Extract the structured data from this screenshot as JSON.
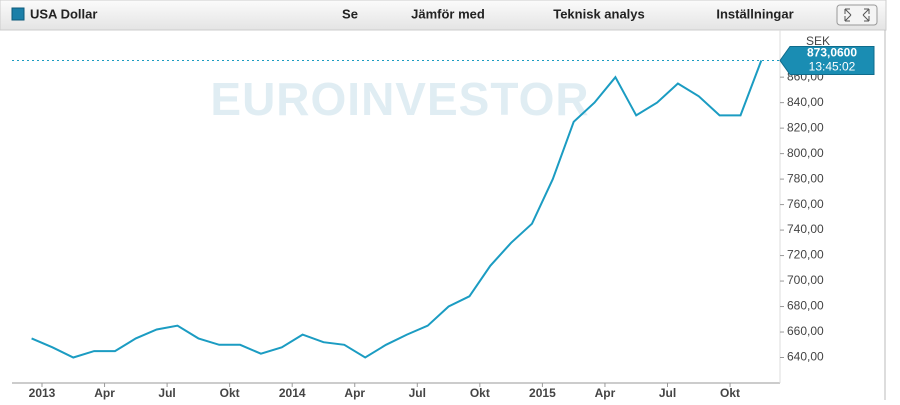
{
  "chart_data": {
    "type": "line",
    "title": "USA Dollar",
    "menu": [
      "Se",
      "Jämför med",
      "Teknisk analys",
      "Inställningar"
    ],
    "watermark": "EUROINVESTOR",
    "unit": "SEK",
    "time": "13:45:02",
    "last_label": {
      "value": 873.06,
      "label": "873,0600"
    },
    "color": "#1b9cc2",
    "x": [
      "2012-12",
      "2013-01",
      "2013-02",
      "2013-03",
      "2013-04",
      "2013-05",
      "2013-06",
      "2013-07",
      "2013-08",
      "2013-09",
      "2013-10",
      "2013-11",
      "2013-12",
      "2014-01",
      "2014-02",
      "2014-03",
      "2014-04",
      "2014-05",
      "2014-06",
      "2014-07",
      "2014-08",
      "2014-09",
      "2014-10",
      "2014-11",
      "2014-12",
      "2015-01",
      "2015-02",
      "2015-03",
      "2015-04",
      "2015-05",
      "2015-06",
      "2015-07",
      "2015-08",
      "2015-09",
      "2015-10",
      "2015-11"
    ],
    "values": [
      655,
      648,
      640,
      645,
      645,
      655,
      662,
      665,
      655,
      650,
      650,
      643,
      648,
      658,
      652,
      650,
      640,
      650,
      658,
      665,
      680,
      688,
      712,
      730,
      745,
      780,
      825,
      840,
      860,
      830,
      840,
      855,
      845,
      830,
      830,
      873.06
    ],
    "xticks": [
      {
        "value": "2013-01",
        "label": "2013"
      },
      {
        "value": "2013-04",
        "label": "Apr"
      },
      {
        "value": "2013-07",
        "label": "Jul"
      },
      {
        "value": "2013-10",
        "label": "Okt"
      },
      {
        "value": "2014-01",
        "label": "2014"
      },
      {
        "value": "2014-04",
        "label": "Apr"
      },
      {
        "value": "2014-07",
        "label": "Jul"
      },
      {
        "value": "2014-10",
        "label": "Okt"
      },
      {
        "value": "2015-01",
        "label": "2015"
      },
      {
        "value": "2015-04",
        "label": "Apr"
      },
      {
        "value": "2015-07",
        "label": "Jul"
      },
      {
        "value": "2015-10",
        "label": "Okt"
      }
    ],
    "ylim": [
      620,
      897
    ],
    "yticks": [
      {
        "value": 640,
        "label": "640,00"
      },
      {
        "value": 660,
        "label": "660,00"
      },
      {
        "value": 680,
        "label": "680,00"
      },
      {
        "value": 700,
        "label": "700,00"
      },
      {
        "value": 720,
        "label": "720,00"
      },
      {
        "value": 740,
        "label": "740,00"
      },
      {
        "value": 760,
        "label": "760,00"
      },
      {
        "value": 780,
        "label": "780,00"
      },
      {
        "value": 800,
        "label": "800,00"
      },
      {
        "value": 820,
        "label": "820,00"
      },
      {
        "value": 840,
        "label": "840,00"
      },
      {
        "value": 860,
        "label": "860,00"
      }
    ]
  }
}
